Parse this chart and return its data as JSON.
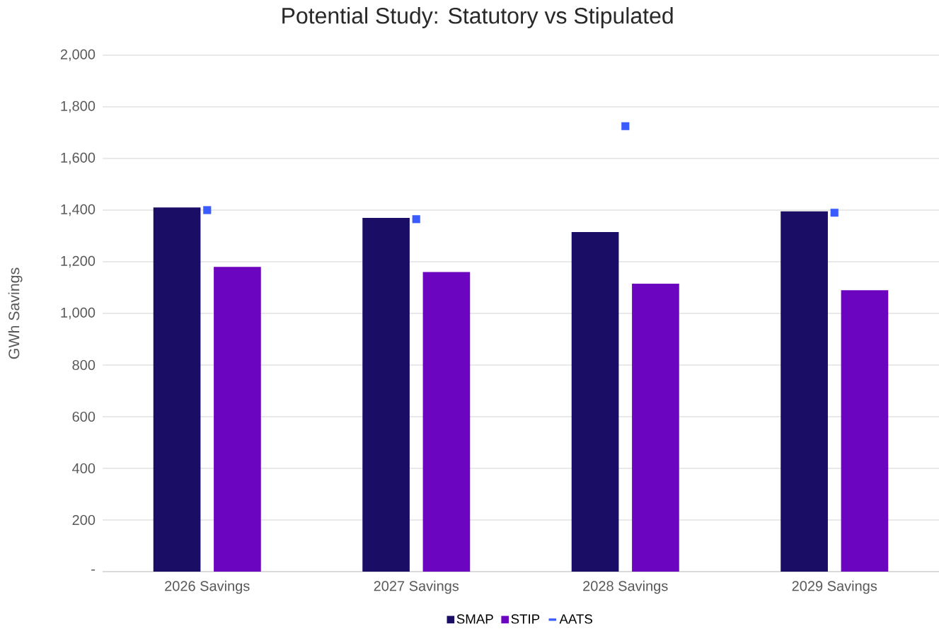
{
  "chart_data": {
    "type": "bar",
    "title": "Potential Study: Statutory vs Stipulated",
    "ylabel": "GWh Savings",
    "categories": [
      "2026 Savings",
      "2027 Savings",
      "2028 Savings",
      "2029 Savings"
    ],
    "series": [
      {
        "name": "SMAP",
        "color": "#1a0d66",
        "values": [
          1410,
          1370,
          1315,
          1395
        ]
      },
      {
        "name": "STIP",
        "color": "#6c05c0",
        "values": [
          1180,
          1160,
          1115,
          1090
        ]
      },
      {
        "name": "AATS",
        "type": "scatter",
        "marker": "square",
        "color": "#3a5cff",
        "values": [
          1400,
          1365,
          1725,
          1390
        ]
      }
    ],
    "ylim": [
      0,
      2000
    ],
    "yticks": [
      {
        "value": 0,
        "label": "-"
      },
      200,
      400,
      600,
      800,
      {
        "value": 1000,
        "label": "1,000"
      },
      {
        "value": 1200,
        "label": "1,200"
      },
      {
        "value": 1400,
        "label": "1,400"
      },
      {
        "value": 1600,
        "label": "1,600"
      },
      {
        "value": 1800,
        "label": "1,800"
      },
      {
        "value": 2000,
        "label": "2,000"
      }
    ],
    "grid": "y",
    "legend": "bottom"
  }
}
